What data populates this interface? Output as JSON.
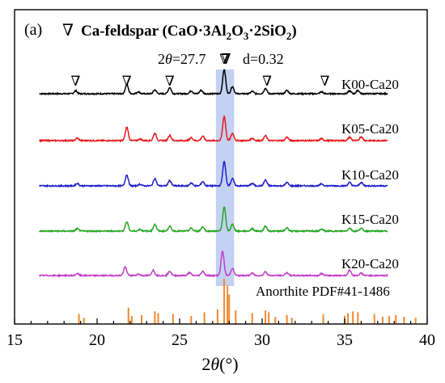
{
  "chart_data": {
    "type": "line",
    "panel_label": "(a)",
    "legend_marker": "∇",
    "legend_label": "Ca-feldspar (CaO·3Al",
    "legend_sub1": "2",
    "legend_mid": "O",
    "legend_sub2": "3",
    "legend_tail": "·2SiO",
    "legend_sub3": "2",
    "legend_close": ")",
    "annotation": {
      "two_theta_symbol": "2",
      "theta_symbol": "θ",
      "two_theta_text": "=27.7",
      "d_text": "d=0.32",
      "marker": "∇",
      "x": 27.7
    },
    "xlabel_prefix": "2",
    "xlabel_theta": "θ",
    "xlabel_unit": "(°)",
    "xlim": [
      15,
      40
    ],
    "xticks": [
      15,
      20,
      25,
      30,
      35,
      40
    ],
    "highlight_range": [
      27.2,
      28.3
    ],
    "highlight_color": "#b8c9f0",
    "series": [
      {
        "name": "K00-Ca20",
        "color": "#000000",
        "peaks": [
          [
            18.7,
            0.12
          ],
          [
            21.8,
            0.38
          ],
          [
            22.5,
            0.08
          ],
          [
            23.5,
            0.16
          ],
          [
            24.4,
            0.26
          ],
          [
            25.7,
            0.12
          ],
          [
            26.3,
            0.14
          ],
          [
            27.7,
            1.0
          ],
          [
            28.2,
            0.3
          ],
          [
            29.4,
            0.1
          ],
          [
            30.2,
            0.22
          ],
          [
            31.5,
            0.14
          ],
          [
            33.6,
            0.08
          ],
          [
            35.3,
            0.12
          ],
          [
            35.8,
            0.14
          ]
        ],
        "markers_x": [
          18.7,
          21.8,
          24.4,
          27.7,
          30.3,
          33.8
        ]
      },
      {
        "name": "K05-Ca20",
        "color": "#e8191c",
        "peaks": [
          [
            18.8,
            0.1
          ],
          [
            21.8,
            0.55
          ],
          [
            22.6,
            0.07
          ],
          [
            23.5,
            0.3
          ],
          [
            24.4,
            0.22
          ],
          [
            25.7,
            0.12
          ],
          [
            26.4,
            0.18
          ],
          [
            27.7,
            1.0
          ],
          [
            28.2,
            0.3
          ],
          [
            29.4,
            0.1
          ],
          [
            30.2,
            0.2
          ],
          [
            31.5,
            0.14
          ],
          [
            33.6,
            0.08
          ],
          [
            35.3,
            0.14
          ],
          [
            36.0,
            0.16
          ]
        ],
        "markers_x": []
      },
      {
        "name": "K10-Ca20",
        "color": "#1f1fcc",
        "peaks": [
          [
            18.8,
            0.1
          ],
          [
            21.8,
            0.45
          ],
          [
            22.6,
            0.07
          ],
          [
            23.5,
            0.3
          ],
          [
            24.4,
            0.22
          ],
          [
            25.7,
            0.12
          ],
          [
            26.4,
            0.18
          ],
          [
            27.7,
            1.0
          ],
          [
            28.2,
            0.3
          ],
          [
            29.4,
            0.1
          ],
          [
            30.2,
            0.24
          ],
          [
            31.5,
            0.14
          ],
          [
            33.6,
            0.08
          ],
          [
            35.3,
            0.14
          ],
          [
            36.0,
            0.14
          ]
        ],
        "markers_x": []
      },
      {
        "name": "K15-Ca20",
        "color": "#22a822",
        "peaks": [
          [
            18.8,
            0.1
          ],
          [
            21.8,
            0.38
          ],
          [
            22.6,
            0.07
          ],
          [
            23.5,
            0.28
          ],
          [
            24.4,
            0.2
          ],
          [
            25.7,
            0.12
          ],
          [
            26.4,
            0.18
          ],
          [
            27.7,
            1.0
          ],
          [
            28.2,
            0.28
          ],
          [
            29.4,
            0.1
          ],
          [
            30.2,
            0.2
          ],
          [
            31.5,
            0.14
          ],
          [
            33.6,
            0.08
          ],
          [
            35.3,
            0.12
          ],
          [
            36.0,
            0.12
          ]
        ],
        "markers_x": []
      },
      {
        "name": "K20-Ca20",
        "color": "#c13fc8",
        "peaks": [
          [
            18.8,
            0.08
          ],
          [
            21.7,
            0.35
          ],
          [
            22.5,
            0.06
          ],
          [
            23.4,
            0.22
          ],
          [
            24.4,
            0.18
          ],
          [
            25.6,
            0.12
          ],
          [
            26.4,
            0.18
          ],
          [
            27.6,
            1.0
          ],
          [
            28.2,
            0.3
          ],
          [
            29.4,
            0.1
          ],
          [
            30.2,
            0.16
          ],
          [
            31.5,
            0.12
          ],
          [
            33.6,
            0.08
          ],
          [
            35.3,
            0.22
          ],
          [
            36.0,
            0.1
          ]
        ],
        "markers_x": []
      }
    ],
    "reference": {
      "name": "Anorthite PDF#41-1486",
      "color": "#f08a30",
      "lines": [
        [
          18.9,
          0.22
        ],
        [
          19.2,
          0.14
        ],
        [
          21.9,
          0.36
        ],
        [
          22.1,
          0.18
        ],
        [
          22.7,
          0.2
        ],
        [
          23.5,
          0.28
        ],
        [
          23.7,
          0.24
        ],
        [
          24.6,
          0.22
        ],
        [
          25.7,
          0.18
        ],
        [
          26.5,
          0.26
        ],
        [
          27.3,
          0.32
        ],
        [
          27.7,
          1.0
        ],
        [
          27.9,
          0.85
        ],
        [
          28.0,
          0.65
        ],
        [
          28.4,
          0.3
        ],
        [
          29.4,
          0.24
        ],
        [
          30.2,
          0.3
        ],
        [
          30.4,
          0.26
        ],
        [
          30.8,
          0.16
        ],
        [
          31.5,
          0.2
        ],
        [
          31.8,
          0.14
        ],
        [
          33.7,
          0.22
        ],
        [
          35.0,
          0.18
        ],
        [
          35.2,
          0.24
        ],
        [
          35.5,
          0.28
        ],
        [
          35.8,
          0.26
        ],
        [
          36.8,
          0.22
        ],
        [
          37.3,
          0.16
        ],
        [
          37.7,
          0.18
        ],
        [
          38.1,
          0.2
        ],
        [
          38.6,
          0.16
        ],
        [
          39.3,
          0.14
        ]
      ]
    }
  }
}
